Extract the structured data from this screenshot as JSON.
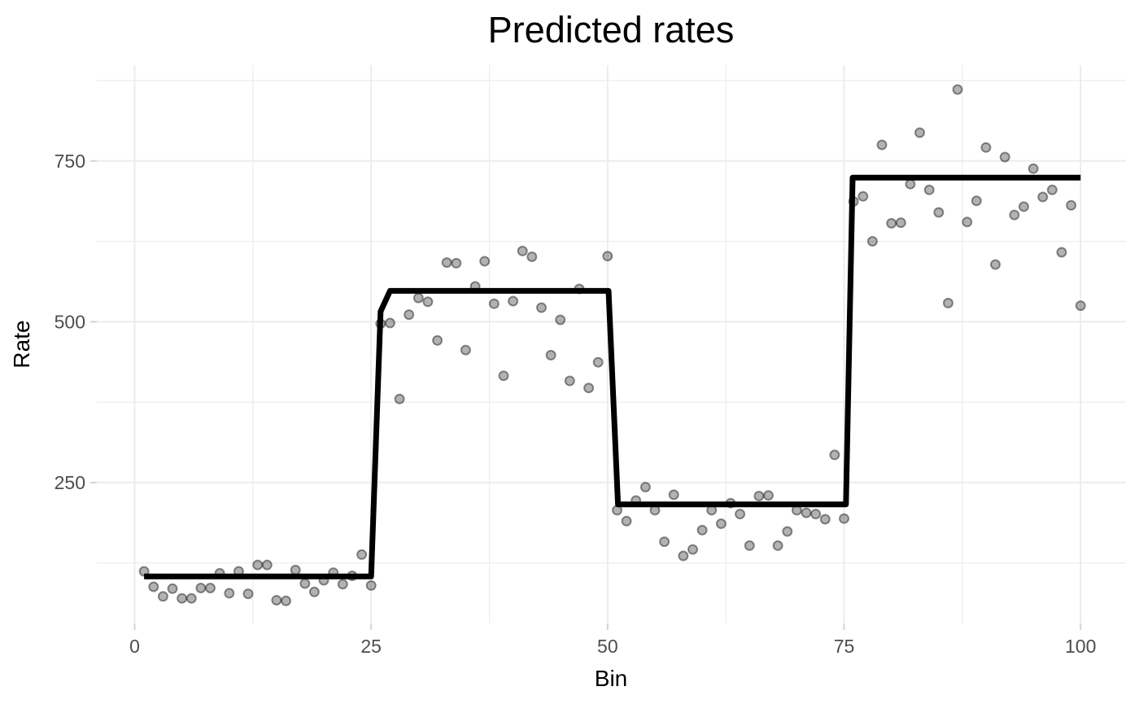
{
  "chart_data": {
    "type": "scatter",
    "title": "Predicted rates",
    "xlabel": "Bin",
    "ylabel": "Rate",
    "xlim": [
      -4,
      104.8
    ],
    "ylim": [
      31,
      899
    ],
    "x_ticks": [
      0,
      25,
      50,
      75,
      100
    ],
    "y_ticks": [
      250,
      500,
      750
    ],
    "x_minor_ticks": [
      12.5,
      37.5,
      62.5,
      87.5
    ],
    "y_minor_ticks": [
      125,
      375,
      625,
      875
    ],
    "grid": true,
    "legend": "none",
    "series": [
      {
        "name": "observed-rates",
        "kind": "points",
        "x": [
          1,
          2,
          3,
          4,
          5,
          6,
          7,
          8,
          9,
          10,
          11,
          12,
          13,
          14,
          15,
          16,
          17,
          18,
          19,
          20,
          21,
          22,
          23,
          24,
          25,
          26,
          27,
          28,
          29,
          30,
          31,
          32,
          33,
          34,
          35,
          36,
          37,
          38,
          39,
          40,
          41,
          42,
          43,
          44,
          45,
          46,
          47,
          48,
          49,
          50,
          51,
          52,
          53,
          54,
          55,
          56,
          57,
          58,
          59,
          60,
          61,
          62,
          63,
          64,
          65,
          66,
          67,
          68,
          69,
          70,
          71,
          72,
          73,
          74,
          75,
          76,
          77,
          78,
          79,
          80,
          81,
          82,
          83,
          84,
          85,
          86,
          87,
          88,
          89,
          90,
          91,
          92,
          93,
          94,
          95,
          96,
          97,
          98,
          99,
          100
        ],
        "y": [
          112,
          88,
          73,
          85,
          70,
          70,
          86,
          86,
          109,
          78,
          112,
          77,
          122,
          122,
          67,
          66,
          114,
          93,
          80,
          98,
          110,
          92,
          105,
          138,
          90,
          497,
          498,
          380,
          511,
          537,
          531,
          471,
          592,
          591,
          456,
          555,
          594,
          528,
          416,
          532,
          610,
          601,
          522,
          448,
          503,
          408,
          551,
          397,
          437,
          602,
          207,
          190,
          222,
          243,
          207,
          158,
          231,
          136,
          146,
          176,
          207,
          186,
          218,
          201,
          152,
          229,
          230,
          152,
          174,
          207,
          203,
          201,
          193,
          293,
          194,
          687,
          695,
          625,
          775,
          653,
          654,
          714,
          794,
          705,
          670,
          529,
          861,
          655,
          688,
          771,
          589,
          756,
          666,
          679,
          738,
          694,
          705,
          608,
          681,
          525
        ]
      },
      {
        "name": "predicted-step-line",
        "kind": "line",
        "x": [
          1,
          25,
          26,
          27,
          50.1,
          51.1,
          75.2,
          75.9,
          100
        ],
        "y": [
          104,
          104,
          516,
          548,
          548,
          216,
          216,
          724,
          724
        ]
      }
    ],
    "colors": {
      "background": "#ffffff",
      "grid": "#ececec",
      "tick": "#d4d4d4",
      "tick_label": "#4d4d4d",
      "axis_title": "#000000",
      "plot_title": "#000000",
      "point_fill": "rgba(0,0,0,0.30)",
      "point_stroke": "rgba(0,0,0,0.42)",
      "line": "#000000"
    }
  }
}
